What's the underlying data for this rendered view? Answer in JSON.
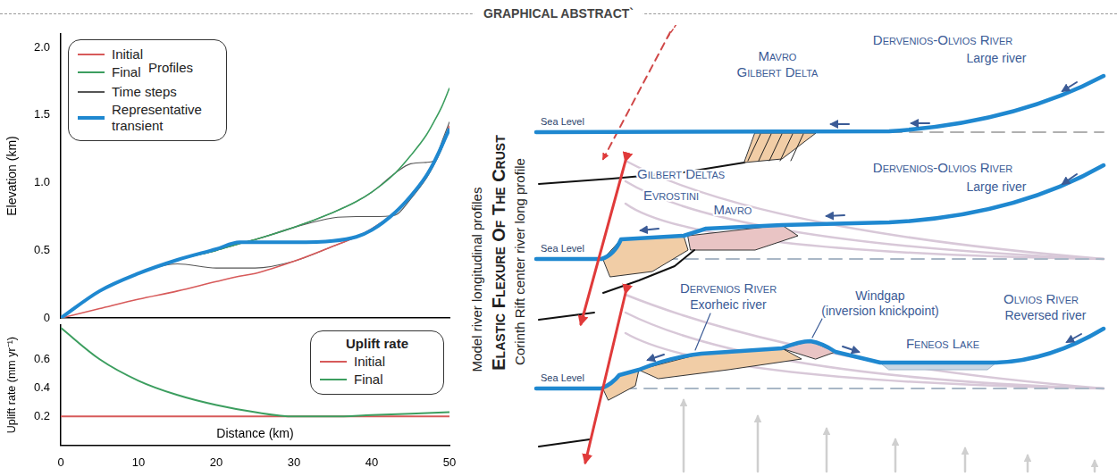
{
  "header": {
    "title": "GRAPHICAL ABSTRACT`"
  },
  "chart_data": [
    {
      "type": "line",
      "y_label": "Elevation (km)",
      "legend_title": "Profiles",
      "legend": "upper left",
      "grid": false,
      "tick_labels": "y",
      "xlim": [
        0,
        50
      ],
      "xticks": [
        0,
        10,
        20,
        30,
        40,
        50
      ],
      "ylim": [
        0,
        2.1
      ],
      "yticks": [
        0,
        0.5,
        {
          "value": 1,
          "label": "1.0"
        },
        1.5,
        {
          "value": 2,
          "label": "2.0"
        }
      ],
      "x": [
        0,
        5,
        10,
        15,
        20,
        23,
        25,
        30,
        35,
        38,
        40,
        43,
        45,
        47,
        48,
        49,
        50
      ],
      "series": [
        {
          "name": "Initial",
          "color": "#d75a5a",
          "values": [
            0,
            0.07,
            0.14,
            0.2,
            0.27,
            0.31,
            0.33,
            0.42,
            0.53,
            0.6,
            0.66,
            0.78,
            0.9,
            1.05,
            1.15,
            1.27,
            1.42
          ]
        },
        {
          "name": "Final",
          "color": "#3c9e5f",
          "values": [
            0,
            0.2,
            0.33,
            0.43,
            0.5,
            0.55,
            0.58,
            0.67,
            0.78,
            0.86,
            0.93,
            1.07,
            1.2,
            1.35,
            1.45,
            1.56,
            1.7
          ]
        },
        {
          "name": "Time steps",
          "color": "#555555",
          "values": [
            0,
            0.2,
            0.33,
            0.4,
            0.37,
            0.37,
            0.37,
            0.42,
            0.53,
            0.6,
            0.66,
            0.78,
            0.9,
            1.05,
            1.15,
            1.27,
            1.42
          ]
        },
        {
          "name": "Time steps",
          "color": "#555555",
          "values": [
            0,
            0.2,
            0.33,
            0.43,
            0.5,
            0.55,
            0.58,
            0.67,
            0.74,
            0.75,
            0.75,
            0.76,
            0.88,
            1.03,
            1.13,
            1.25,
            1.4
          ]
        },
        {
          "name": "Time steps",
          "color": "#555555",
          "values": [
            0,
            0.2,
            0.33,
            0.43,
            0.5,
            0.55,
            0.58,
            0.67,
            0.78,
            0.86,
            0.93,
            1.07,
            1.14,
            1.15,
            1.16,
            1.3,
            1.45
          ]
        },
        {
          "name": "Representative transient",
          "color": "#1f88d0",
          "values": [
            0,
            0.2,
            0.33,
            0.43,
            0.51,
            0.56,
            0.56,
            0.56,
            0.57,
            0.6,
            0.65,
            0.78,
            0.9,
            1.05,
            1.15,
            1.27,
            1.4
          ]
        }
      ]
    },
    {
      "type": "line",
      "y_label": "Uplift rate (mm yr⁻¹)",
      "x_label": "Distance (km)",
      "legend_title": "Uplift rate",
      "legend": "upper right",
      "grid": false,
      "xlim": [
        0,
        50
      ],
      "xticks": [
        0,
        10,
        20,
        30,
        40,
        50
      ],
      "ylim": [
        0,
        0.84
      ],
      "yticks": [
        0.2,
        0.4,
        0.6
      ],
      "x": [
        0,
        5,
        10,
        15,
        20,
        25,
        30,
        35,
        40,
        45,
        50
      ],
      "series": [
        {
          "name": "Initial",
          "color": "#d75a5a",
          "values": [
            0.2,
            0.2,
            0.2,
            0.2,
            0.2,
            0.2,
            0.2,
            0.2,
            0.2,
            0.2,
            0.2
          ]
        },
        {
          "name": "Final",
          "color": "#3c9e5f",
          "values": [
            0.82,
            0.6,
            0.45,
            0.35,
            0.28,
            0.23,
            0.2,
            0.2,
            0.21,
            0.22,
            0.23
          ]
        }
      ]
    }
  ],
  "diagram": {
    "side_labels": [
      "Model river longitudinal profiles",
      "Elastic Flexure Of The Crust",
      "Corinth Rift center river long profile"
    ],
    "panels": [
      {
        "sea_level": "Sea Level",
        "labels": [
          "Mavro",
          "Gilbert Delta",
          "Dervenios-Olvios River",
          "Large river"
        ]
      },
      {
        "sea_level": "Sea Level",
        "labels": [
          "Gilbert Deltas",
          "Evrostini",
          "Mavro",
          "Dervenios-Olvios River",
          "Large river"
        ]
      },
      {
        "sea_level": "Sea Level",
        "labels": [
          "Dervenios River",
          "Exorheic river",
          "Windgap",
          "(inversion knickpoint)",
          "Feneos Lake",
          "Olvios River",
          "Reversed river"
        ]
      }
    ]
  }
}
